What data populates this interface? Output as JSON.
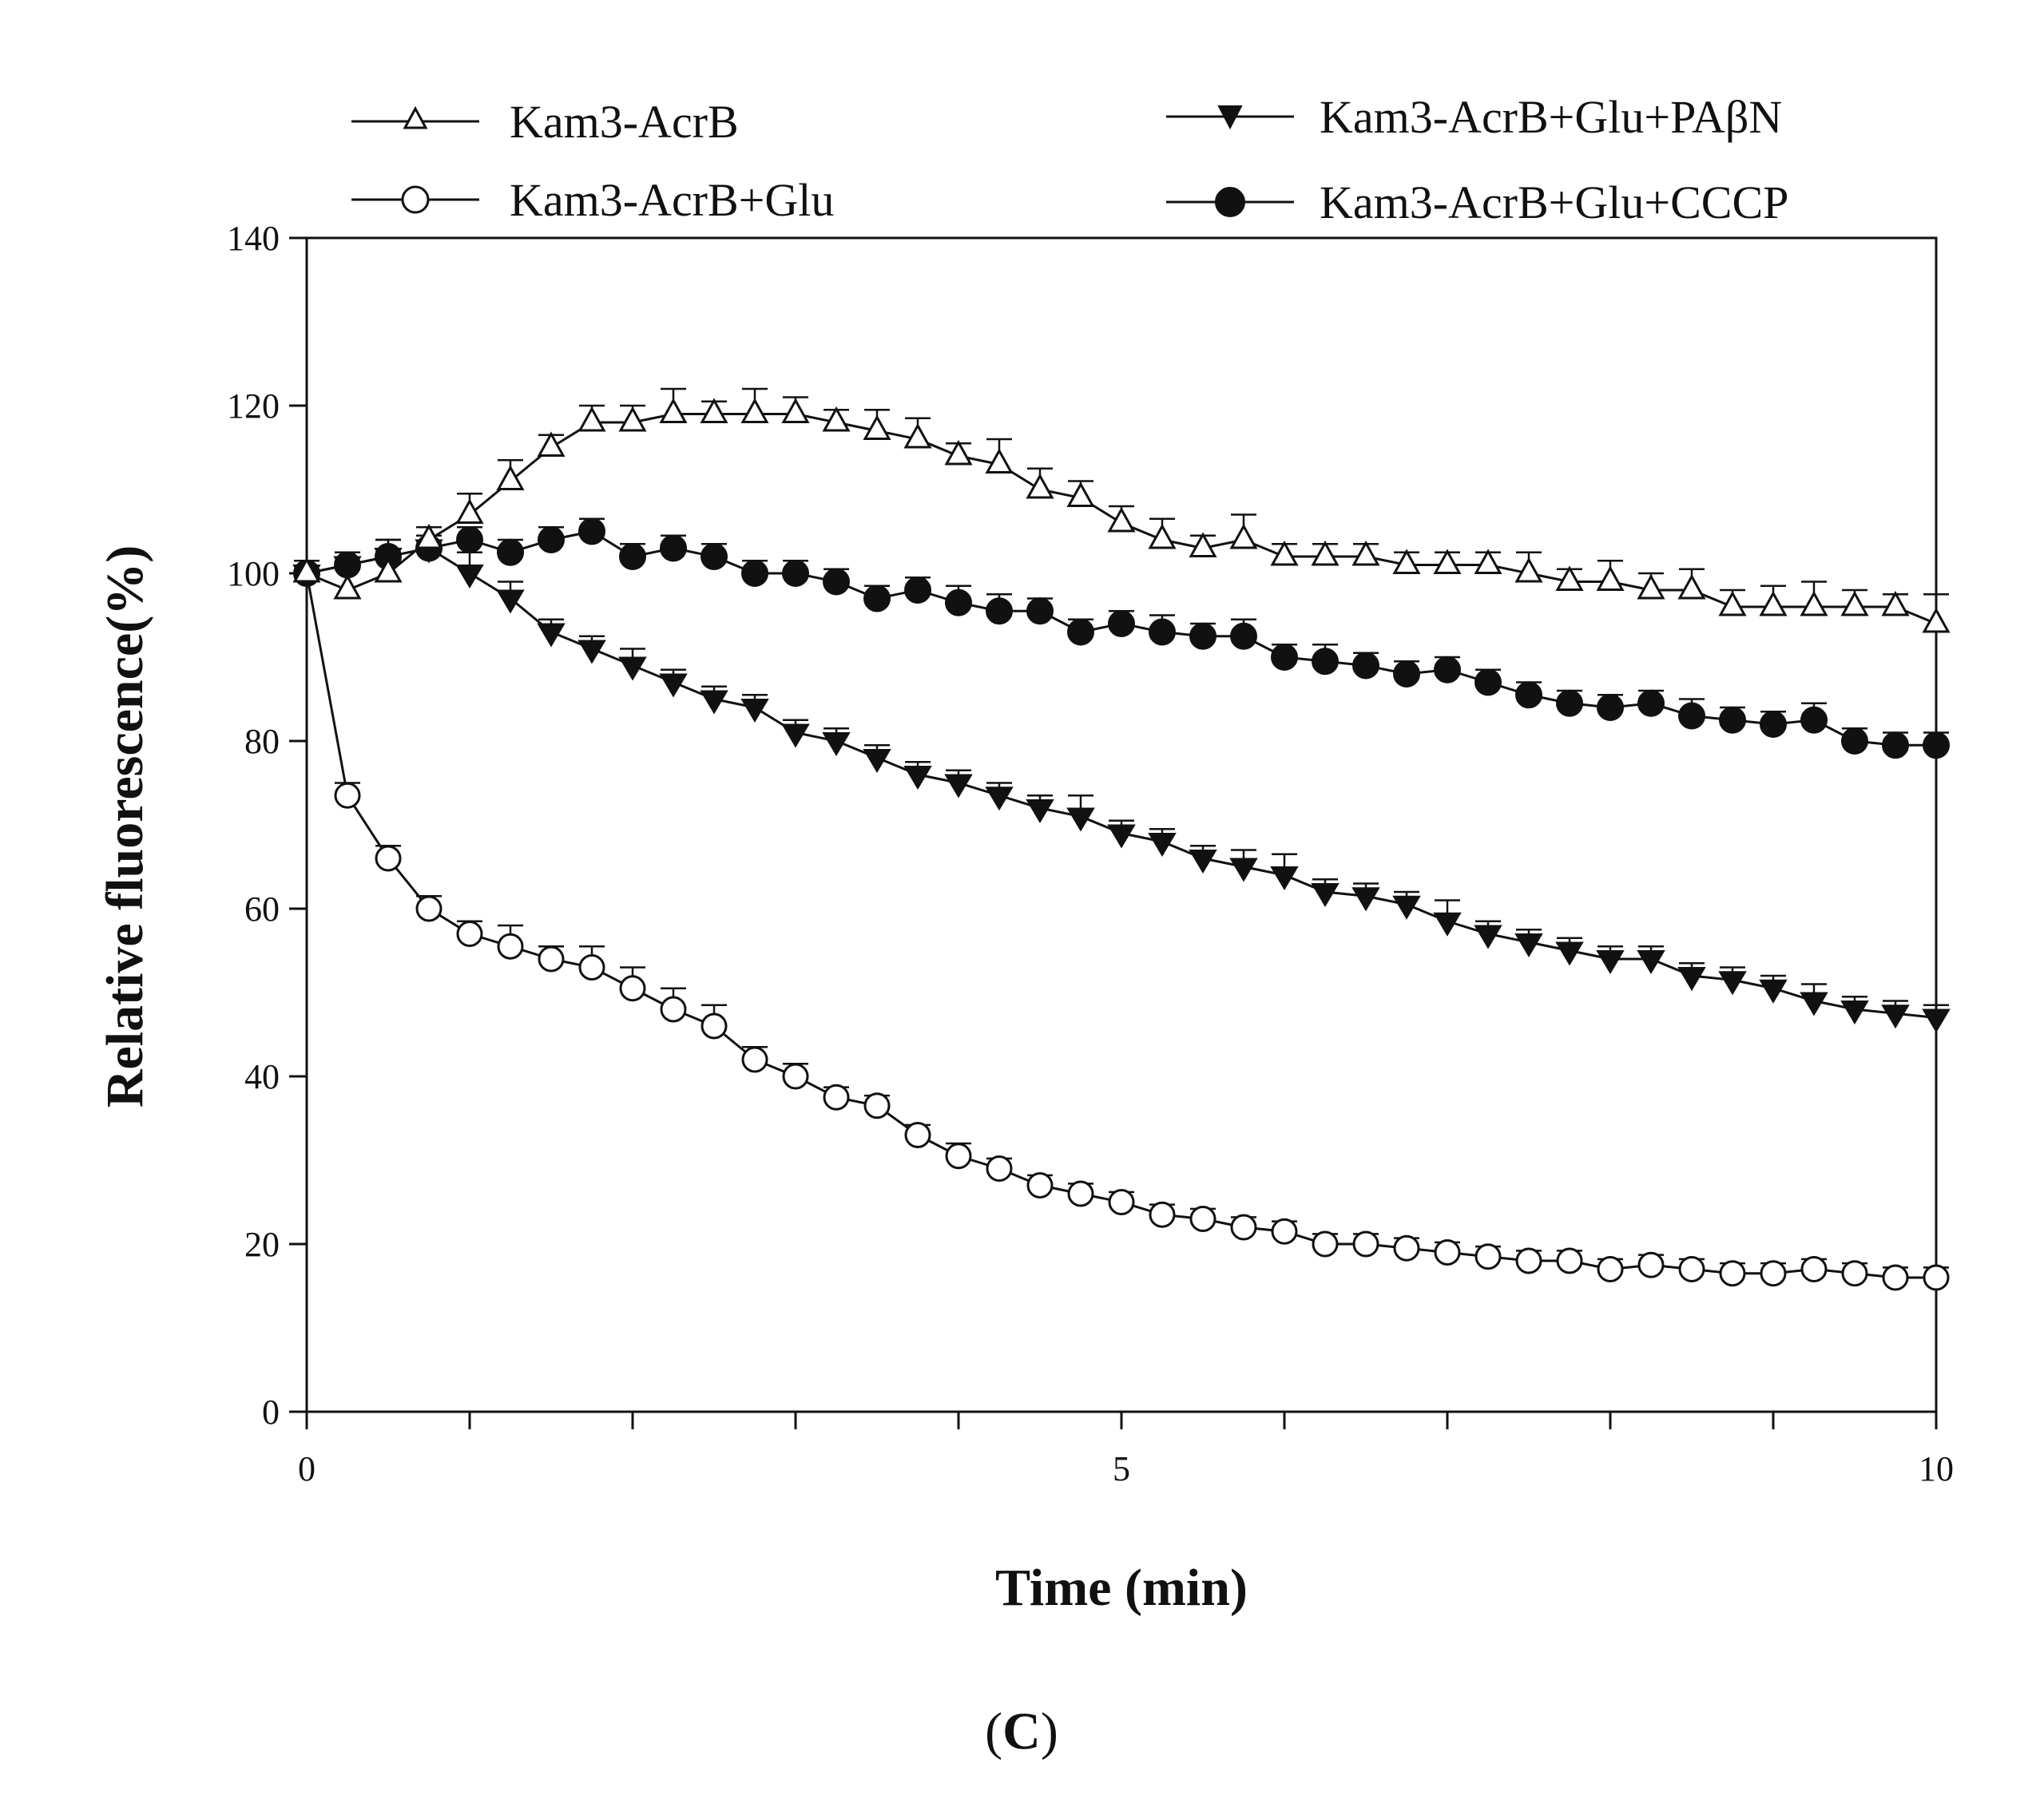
{
  "figure": {
    "panel_label_open": "(",
    "panel_label_letter": "C",
    "panel_label_close": ")"
  },
  "chart_data": {
    "type": "line",
    "title": "",
    "xlabel": "Time (min)",
    "ylabel": "Relative fluorescence(%)",
    "xlim": [
      0,
      10
    ],
    "ylim": [
      0,
      140
    ],
    "xticks": [
      0,
      5,
      10
    ],
    "xtick_labels": [
      "0",
      "5",
      "10"
    ],
    "xminor_step": 1,
    "yticks": [
      0,
      20,
      40,
      60,
      80,
      100,
      120,
      140
    ],
    "ytick_labels": [
      "0",
      "20",
      "40",
      "60",
      "80",
      "100",
      "120",
      "140"
    ],
    "grid": false,
    "legend_position": "top",
    "x": [
      0,
      0.25,
      0.5,
      0.75,
      1.0,
      1.25,
      1.5,
      1.75,
      2.0,
      2.25,
      2.5,
      2.75,
      3.0,
      3.25,
      3.5,
      3.75,
      4.0,
      4.25,
      4.5,
      4.75,
      5.0,
      5.25,
      5.5,
      5.75,
      6.0,
      6.25,
      6.5,
      6.75,
      7.0,
      7.25,
      7.5,
      7.75,
      8.0,
      8.25,
      8.5,
      8.75,
      9.0,
      9.25,
      9.5,
      9.75,
      10.0
    ],
    "series": [
      {
        "name": "Kam3-AcrB",
        "marker": "triangle-up-open",
        "values": [
          100,
          98,
          100,
          104,
          107,
          111,
          115,
          118,
          118,
          119,
          119,
          119,
          119,
          118,
          117,
          116,
          114,
          113,
          110,
          109,
          106,
          104,
          103,
          104,
          102,
          102,
          102,
          101,
          101,
          101,
          100,
          99,
          99,
          98,
          98,
          96,
          96,
          96,
          96,
          96,
          94
        ],
        "errors": [
          1.5,
          2.5,
          2.5,
          1.5,
          2.5,
          2.5,
          1.5,
          2,
          2,
          3,
          1.5,
          3,
          2,
          1.5,
          2.5,
          2.5,
          1.5,
          3,
          2.5,
          2,
          2,
          2.5,
          1.5,
          3,
          1.5,
          1.5,
          1.5,
          1.5,
          1.5,
          1.5,
          2.5,
          1.5,
          2.5,
          2,
          2.5,
          2,
          2.5,
          3,
          2,
          1.5,
          3.5
        ]
      },
      {
        "name": "Kam3-AcrB+Glu",
        "marker": "circle-open",
        "values": [
          100,
          73.5,
          66,
          60,
          57,
          55.5,
          54,
          53,
          50.5,
          48,
          46,
          42,
          40,
          37.5,
          36.5,
          33,
          30.5,
          29,
          27,
          26,
          25,
          23.5,
          23,
          22,
          21.5,
          20,
          20,
          19.5,
          19,
          18.5,
          18,
          18,
          17,
          17.5,
          17,
          16.5,
          16.5,
          17,
          16.5,
          16,
          16
        ],
        "errors": [
          1.5,
          1.5,
          1.5,
          1.5,
          1.5,
          2.5,
          1.5,
          2.5,
          2.5,
          2.5,
          2.5,
          1.5,
          1.5,
          1.2,
          1.2,
          1.2,
          1.5,
          1.2,
          1.2,
          1.2,
          1.2,
          1.2,
          1.2,
          1.2,
          1.2,
          1.2,
          1.2,
          1.2,
          1.2,
          1.2,
          1.2,
          1.2,
          1.2,
          1.2,
          1.2,
          1.2,
          1.2,
          1.2,
          1.2,
          1.2,
          1.2
        ]
      },
      {
        "name": "Kam3-AcrB+Glu+PAβN",
        "marker": "triangle-down-filled",
        "values": [
          100,
          101,
          102,
          103,
          100,
          97,
          93,
          91,
          89,
          87,
          85,
          84,
          81,
          80,
          78,
          76,
          75,
          73.5,
          72,
          71,
          69,
          68,
          66,
          65,
          64,
          62,
          61.5,
          60.5,
          58.5,
          57,
          56,
          55,
          54,
          54,
          52,
          51.5,
          50.5,
          49,
          48,
          47.5,
          47
        ],
        "errors": [
          1.5,
          1.5,
          2,
          1.5,
          2.5,
          2,
          1.5,
          1.5,
          2,
          1.5,
          1.5,
          1.5,
          1.5,
          1.5,
          1.5,
          1.5,
          1.5,
          1.5,
          1.5,
          2.5,
          1.5,
          1.5,
          1.5,
          2,
          2.5,
          1.5,
          1.5,
          1.5,
          2.5,
          1.5,
          1.5,
          1.5,
          1.5,
          1.5,
          1.5,
          1.5,
          1.5,
          2,
          1.5,
          1.5,
          1.5
        ]
      },
      {
        "name": "Kam3-AcrB+Glu+CCCP",
        "marker": "circle-filled",
        "values": [
          100,
          101,
          102,
          103,
          104,
          102.5,
          104,
          105,
          102,
          103,
          102,
          100,
          100,
          99,
          97,
          98,
          96.5,
          95.5,
          95.5,
          93,
          94,
          93,
          92.5,
          92.5,
          90,
          89.5,
          89,
          88,
          88.5,
          87,
          85.5,
          84.5,
          84,
          84.5,
          83,
          82.5,
          82,
          82.5,
          80,
          79.5,
          79.5
        ],
        "errors": [
          1.5,
          1.5,
          2,
          1.5,
          1.5,
          1.5,
          1.5,
          1.5,
          1.5,
          1.5,
          1.5,
          1.5,
          1.5,
          1.5,
          1.5,
          1.5,
          2,
          2,
          1.5,
          1.5,
          1.5,
          2,
          1.5,
          2,
          1.5,
          2,
          1.5,
          1.5,
          1.5,
          1.5,
          1.5,
          1.5,
          1.5,
          1.5,
          2,
          1.5,
          1.5,
          2,
          1.5,
          1.5,
          1.5
        ]
      }
    ]
  }
}
